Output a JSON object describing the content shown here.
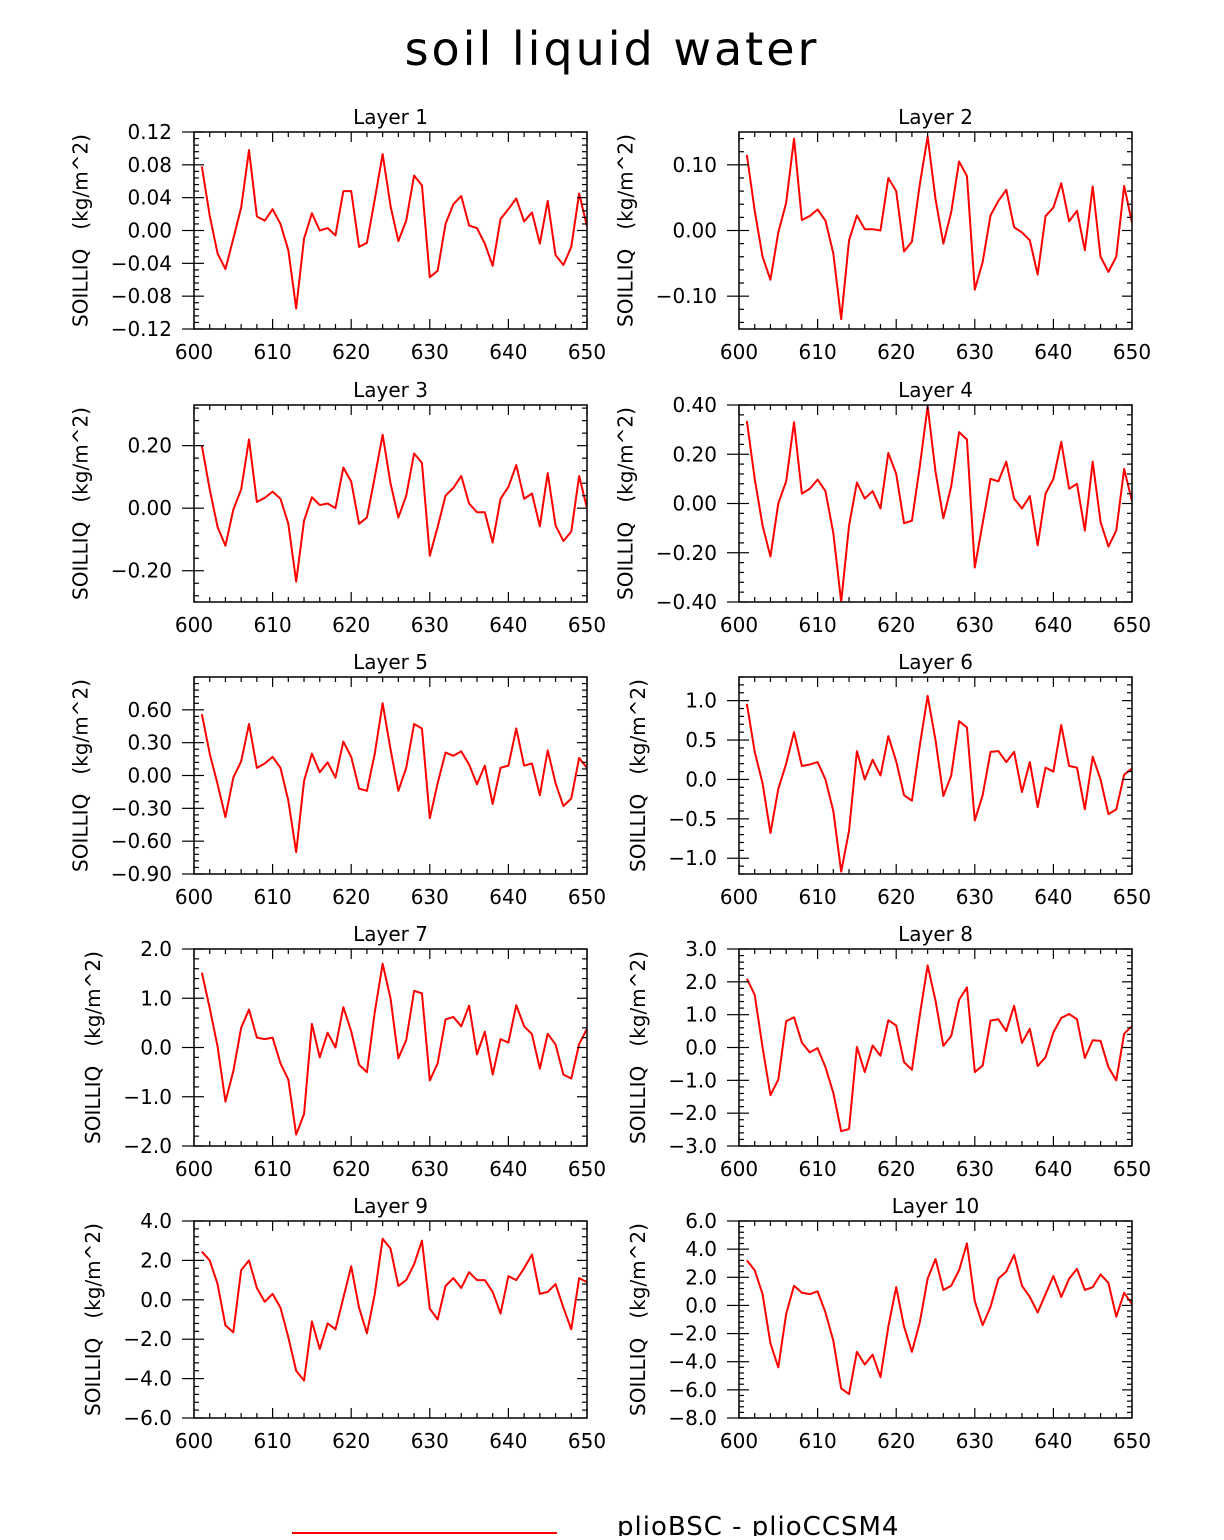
{
  "title": "soil liquid water",
  "legend": {
    "label": "plioBSC - plioCCSM4",
    "line_color": "#ff0000"
  },
  "chart_data": [
    {
      "type": "line",
      "title": "Layer 1",
      "ylabel": "SOILLIQ   (kg/m^2)",
      "xlim": [
        600,
        650
      ],
      "xticks": [
        600,
        610,
        620,
        630,
        640,
        650
      ],
      "ylim": [
        -0.12,
        0.12
      ],
      "yticks": [
        -0.12,
        -0.08,
        -0.04,
        0.0,
        0.04,
        0.08,
        0.12
      ],
      "yticklabels": [
        "−0.12",
        "−0.08",
        "−0.04",
        "0.00",
        "0.04",
        "0.08",
        "0.12"
      ],
      "x_start": 601,
      "values": [
        0.078,
        0.018,
        -0.028,
        -0.047,
        -0.01,
        0.028,
        0.098,
        0.017,
        0.012,
        0.026,
        0.008,
        -0.024,
        -0.095,
        -0.01,
        0.021,
        0.0,
        0.003,
        -0.006,
        0.048,
        0.048,
        -0.02,
        -0.015,
        0.038,
        0.093,
        0.03,
        -0.013,
        0.012,
        0.067,
        0.055,
        -0.057,
        -0.049,
        0.008,
        0.032,
        0.042,
        0.006,
        0.003,
        -0.016,
        -0.043,
        0.014,
        0.026,
        0.039,
        0.011,
        0.022,
        -0.016,
        0.036,
        -0.03,
        -0.042,
        -0.02,
        0.045,
        0.005
      ]
    },
    {
      "type": "line",
      "title": "Layer 2",
      "ylabel": "SOILLIQ   (kg/m^2)",
      "xlim": [
        600,
        650
      ],
      "xticks": [
        600,
        610,
        620,
        630,
        640,
        650
      ],
      "ylim": [
        -0.15,
        0.15
      ],
      "yticks": [
        -0.1,
        0.0,
        0.1
      ],
      "yticklabels": [
        "−0.10",
        "0.00",
        "0.10"
      ],
      "x_start": 601,
      "values": [
        0.115,
        0.03,
        -0.04,
        -0.075,
        -0.003,
        0.042,
        0.14,
        0.016,
        0.022,
        0.032,
        0.015,
        -0.035,
        -0.135,
        -0.015,
        0.023,
        0.002,
        0.002,
        0.0,
        0.08,
        0.06,
        -0.032,
        -0.017,
        0.07,
        0.143,
        0.048,
        -0.02,
        0.028,
        0.105,
        0.083,
        -0.09,
        -0.048,
        0.023,
        0.045,
        0.062,
        0.005,
        -0.003,
        -0.015,
        -0.067,
        0.022,
        0.035,
        0.072,
        0.014,
        0.03,
        -0.03,
        0.067,
        -0.04,
        -0.063,
        -0.04,
        0.068,
        0.012
      ]
    },
    {
      "type": "line",
      "title": "Layer 3",
      "ylabel": "SOILLIQ   (kg/m^2)",
      "xlim": [
        600,
        650
      ],
      "xticks": [
        600,
        610,
        620,
        630,
        640,
        650
      ],
      "ylim": [
        -0.3,
        0.33
      ],
      "yticks": [
        -0.2,
        0.0,
        0.2
      ],
      "yticklabels": [
        "−0.20",
        "0.00",
        "0.20"
      ],
      "x_start": 601,
      "values": [
        0.2,
        0.06,
        -0.06,
        -0.12,
        -0.005,
        0.06,
        0.22,
        0.02,
        0.033,
        0.053,
        0.03,
        -0.05,
        -0.235,
        -0.04,
        0.035,
        0.01,
        0.015,
        0.0,
        0.13,
        0.085,
        -0.05,
        -0.03,
        0.1,
        0.235,
        0.08,
        -0.03,
        0.04,
        0.175,
        0.145,
        -0.152,
        -0.06,
        0.04,
        0.065,
        0.103,
        0.015,
        -0.013,
        -0.013,
        -0.11,
        0.03,
        0.068,
        0.138,
        0.03,
        0.047,
        -0.058,
        0.112,
        -0.055,
        -0.105,
        -0.075,
        0.103,
        0.0
      ]
    },
    {
      "type": "line",
      "title": "Layer 4",
      "ylabel": "SOILLIQ   (kg/m^2)",
      "xlim": [
        600,
        650
      ],
      "xticks": [
        600,
        610,
        620,
        630,
        640,
        650
      ],
      "ylim": [
        -0.4,
        0.4
      ],
      "yticks": [
        -0.4,
        -0.2,
        0.0,
        0.2,
        0.4
      ],
      "yticklabels": [
        "−0.40",
        "−0.20",
        "0.00",
        "0.20",
        "0.40"
      ],
      "x_start": 601,
      "values": [
        0.335,
        0.1,
        -0.09,
        -0.215,
        0.0,
        0.09,
        0.33,
        0.04,
        0.06,
        0.097,
        0.05,
        -0.12,
        -0.4,
        -0.09,
        0.085,
        0.02,
        0.05,
        -0.02,
        0.205,
        0.12,
        -0.08,
        -0.07,
        0.15,
        0.395,
        0.13,
        -0.06,
        0.07,
        0.29,
        0.26,
        -0.26,
        -0.08,
        0.1,
        0.09,
        0.17,
        0.02,
        -0.02,
        0.03,
        -0.17,
        0.04,
        0.1,
        0.25,
        0.06,
        0.08,
        -0.11,
        0.17,
        -0.075,
        -0.175,
        -0.11,
        0.14,
        0.01
      ]
    },
    {
      "type": "line",
      "title": "Layer 5",
      "ylabel": "SOILLIQ   (kg/m^2)",
      "xlim": [
        600,
        650
      ],
      "xticks": [
        600,
        610,
        620,
        630,
        640,
        650
      ],
      "ylim": [
        -0.9,
        0.9
      ],
      "yticks": [
        -0.9,
        -0.6,
        -0.3,
        0.0,
        0.3,
        0.6
      ],
      "yticklabels": [
        "−0.90",
        "−0.60",
        "−0.30",
        "0.00",
        "0.30",
        "0.60"
      ],
      "x_start": 601,
      "values": [
        0.56,
        0.2,
        -0.08,
        -0.38,
        -0.02,
        0.13,
        0.47,
        0.07,
        0.11,
        0.17,
        0.07,
        -0.23,
        -0.7,
        -0.05,
        0.2,
        0.03,
        0.12,
        -0.02,
        0.31,
        0.17,
        -0.12,
        -0.14,
        0.2,
        0.66,
        0.24,
        -0.14,
        0.07,
        0.47,
        0.43,
        -0.39,
        -0.07,
        0.21,
        0.18,
        0.22,
        0.1,
        -0.08,
        0.09,
        -0.26,
        0.07,
        0.09,
        0.43,
        0.09,
        0.11,
        -0.18,
        0.23,
        -0.07,
        -0.28,
        -0.21,
        0.16,
        0.07
      ]
    },
    {
      "type": "line",
      "title": "Layer 6",
      "ylabel": "SOILLIQ   (kg/m^2)",
      "xlim": [
        600,
        650
      ],
      "xticks": [
        600,
        610,
        620,
        630,
        640,
        650
      ],
      "ylim": [
        -1.2,
        1.3
      ],
      "yticks": [
        -1.0,
        -0.5,
        0.0,
        0.5,
        1.0
      ],
      "yticklabels": [
        "−1.0",
        "−0.5",
        "0.0",
        "0.5",
        "1.0"
      ],
      "x_start": 601,
      "values": [
        0.96,
        0.35,
        -0.05,
        -0.68,
        -0.12,
        0.2,
        0.6,
        0.17,
        0.19,
        0.22,
        0.0,
        -0.4,
        -1.17,
        -0.65,
        0.36,
        0.0,
        0.25,
        0.05,
        0.55,
        0.23,
        -0.2,
        -0.27,
        0.43,
        1.06,
        0.5,
        -0.21,
        0.05,
        0.74,
        0.66,
        -0.52,
        -0.2,
        0.35,
        0.36,
        0.22,
        0.35,
        -0.16,
        0.22,
        -0.35,
        0.15,
        0.1,
        0.69,
        0.17,
        0.15,
        -0.38,
        0.29,
        0.0,
        -0.44,
        -0.38,
        0.06,
        0.14
      ]
    },
    {
      "type": "line",
      "title": "Layer 7",
      "ylabel": "SOILLIQ   (kg/m^2)",
      "xlim": [
        600,
        650
      ],
      "xticks": [
        600,
        610,
        620,
        630,
        640,
        650
      ],
      "ylim": [
        -2.0,
        2.0
      ],
      "yticks": [
        -2.0,
        -1.0,
        0.0,
        1.0,
        2.0
      ],
      "yticklabels": [
        "−2.0",
        "−1.0",
        "0.0",
        "1.0",
        "2.0"
      ],
      "x_start": 601,
      "values": [
        1.52,
        0.8,
        0.02,
        -1.1,
        -0.48,
        0.4,
        0.77,
        0.2,
        0.17,
        0.2,
        -0.32,
        -0.65,
        -1.77,
        -1.35,
        0.48,
        -0.2,
        0.3,
        0.0,
        0.82,
        0.33,
        -0.35,
        -0.5,
        0.72,
        1.7,
        1.0,
        -0.22,
        0.15,
        1.15,
        1.1,
        -0.67,
        -0.32,
        0.57,
        0.62,
        0.43,
        0.85,
        -0.14,
        0.32,
        -0.55,
        0.17,
        0.1,
        0.86,
        0.43,
        0.27,
        -0.43,
        0.28,
        0.06,
        -0.55,
        -0.63,
        0.07,
        0.38
      ]
    },
    {
      "type": "line",
      "title": "Layer 8",
      "ylabel": "SOILLIQ   (kg/m^2)",
      "xlim": [
        600,
        650
      ],
      "xticks": [
        600,
        610,
        620,
        630,
        640,
        650
      ],
      "ylim": [
        -3.0,
        3.0
      ],
      "yticks": [
        -3.0,
        -2.0,
        -1.0,
        0.0,
        1.0,
        2.0,
        3.0
      ],
      "yticklabels": [
        "−3.0",
        "−2.0",
        "−1.0",
        "0.0",
        "1.0",
        "2.0",
        "3.0"
      ],
      "x_start": 601,
      "values": [
        2.1,
        1.6,
        0.0,
        -1.45,
        -0.98,
        0.8,
        0.92,
        0.15,
        -0.15,
        -0.02,
        -0.6,
        -1.38,
        -2.55,
        -2.48,
        0.02,
        -0.75,
        0.06,
        -0.25,
        0.83,
        0.67,
        -0.45,
        -0.68,
        0.98,
        2.5,
        1.43,
        0.05,
        0.35,
        1.45,
        1.83,
        -0.75,
        -0.55,
        0.82,
        0.86,
        0.5,
        1.27,
        0.14,
        0.57,
        -0.56,
        -0.3,
        0.46,
        0.9,
        1.02,
        0.86,
        -0.32,
        0.22,
        0.2,
        -0.6,
        -1.0,
        0.42,
        0.65
      ]
    },
    {
      "type": "line",
      "title": "Layer 9",
      "ylabel": "SOILLIQ   (kg/m^2)",
      "xlim": [
        600,
        650
      ],
      "xticks": [
        600,
        610,
        620,
        630,
        640,
        650
      ],
      "ylim": [
        -6.0,
        4.0
      ],
      "yticks": [
        -6.0,
        -4.0,
        -2.0,
        0.0,
        2.0,
        4.0
      ],
      "yticklabels": [
        "−6.0",
        "−4.0",
        "−2.0",
        "0.0",
        "2.0",
        "4.0"
      ],
      "x_start": 601,
      "values": [
        2.45,
        2.0,
        0.8,
        -1.3,
        -1.65,
        1.5,
        2.0,
        0.6,
        -0.1,
        0.3,
        -0.4,
        -1.9,
        -3.6,
        -4.1,
        -1.1,
        -2.5,
        -1.2,
        -1.5,
        0.1,
        1.7,
        -0.4,
        -1.7,
        0.3,
        3.1,
        2.6,
        0.7,
        1.0,
        1.8,
        3.0,
        -0.45,
        -1.0,
        0.7,
        1.1,
        0.6,
        1.4,
        1.0,
        1.0,
        0.4,
        -0.7,
        1.2,
        1.0,
        1.6,
        2.3,
        0.3,
        0.4,
        0.8,
        -0.4,
        -1.5,
        1.1,
        0.9
      ]
    },
    {
      "type": "line",
      "title": "Layer 10",
      "ylabel": "SOILLIQ   (kg/m^2)",
      "xlim": [
        600,
        650
      ],
      "xticks": [
        600,
        610,
        620,
        630,
        640,
        650
      ],
      "ylim": [
        -8.0,
        6.0
      ],
      "yticks": [
        -8.0,
        -6.0,
        -4.0,
        -2.0,
        0.0,
        2.0,
        4.0,
        6.0
      ],
      "yticklabels": [
        "−8.0",
        "−6.0",
        "−4.0",
        "−2.0",
        "0.0",
        "2.0",
        "4.0",
        "6.0"
      ],
      "x_start": 601,
      "values": [
        3.2,
        2.5,
        0.8,
        -2.7,
        -4.4,
        -0.6,
        1.4,
        0.9,
        0.8,
        1.0,
        -0.5,
        -2.5,
        -5.9,
        -6.3,
        -3.3,
        -4.2,
        -3.5,
        -5.1,
        -1.5,
        1.3,
        -1.5,
        -3.3,
        -1.2,
        1.9,
        3.3,
        1.1,
        1.4,
        2.5,
        4.4,
        0.3,
        -1.4,
        -0.1,
        1.9,
        2.4,
        3.6,
        1.4,
        0.6,
        -0.5,
        0.8,
        2.1,
        0.6,
        1.9,
        2.6,
        1.1,
        1.3,
        2.2,
        1.6,
        -0.8,
        0.9,
        0.1
      ]
    }
  ]
}
